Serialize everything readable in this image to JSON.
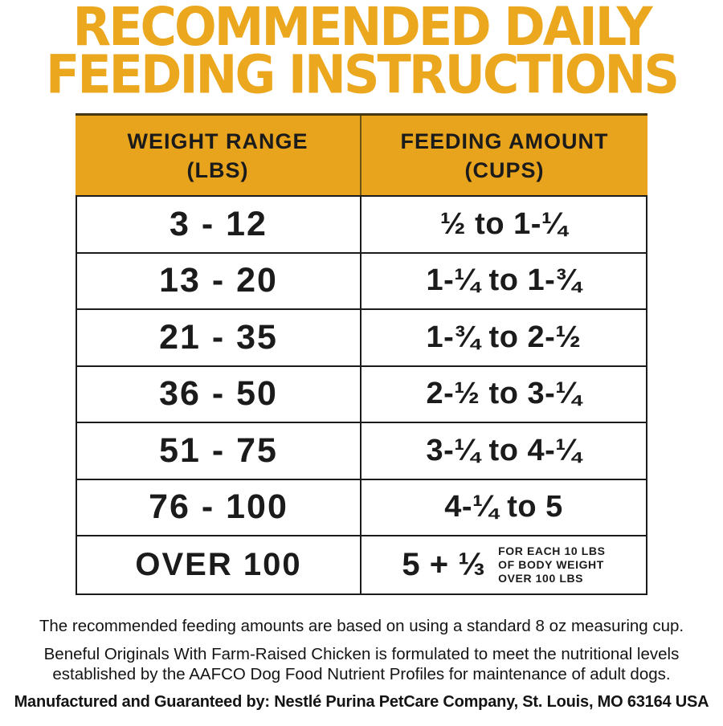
{
  "title": {
    "line1": "RECOMMENDED DAILY",
    "line2": "FEEDING INSTRUCTIONS"
  },
  "colors": {
    "accent_gold_title": "#EBA71E",
    "accent_gold_header": "#E8A41D",
    "header_divider": "#6B5514",
    "table_border": "#1B1B1B",
    "text": "#1A1A1A"
  },
  "table": {
    "headers": [
      {
        "label": "WEIGHT RANGE",
        "sub": "(LBS)"
      },
      {
        "label": "FEEDING AMOUNT",
        "sub": "(CUPS)"
      }
    ],
    "rows": [
      {
        "weight": "3 - 12",
        "amount": "½ to 1-¼"
      },
      {
        "weight": "13 - 20",
        "amount": "1-¼ to 1-¾"
      },
      {
        "weight": "21 - 35",
        "amount": "1-¾ to 2-½"
      },
      {
        "weight": "36 - 50",
        "amount": "2-½ to 3-¼"
      },
      {
        "weight": "51 - 75",
        "amount": "3-¼ to 4-¼"
      },
      {
        "weight": "76 - 100",
        "amount": "4-¼ to 5"
      },
      {
        "weight": "OVER 100",
        "amount": "5 + ⅓",
        "note_lines": [
          "FOR EACH 10 LBS",
          "OF BODY WEIGHT",
          "OVER 100 LBS"
        ]
      }
    ]
  },
  "footnotes": {
    "measuring_cup": "The recommended feeding amounts are based on using a standard 8 oz measuring cup.",
    "aafco_line1": "Beneful Originals With Farm-Raised Chicken is formulated to meet the nutritional levels",
    "aafco_line2": "established by the AAFCO Dog Food Nutrient Profiles for maintenance of adult dogs.",
    "manufacturer": "Manufactured and Guaranteed by: Nestlé Purina PetCare Company, St. Louis, MO 63164 USA"
  }
}
